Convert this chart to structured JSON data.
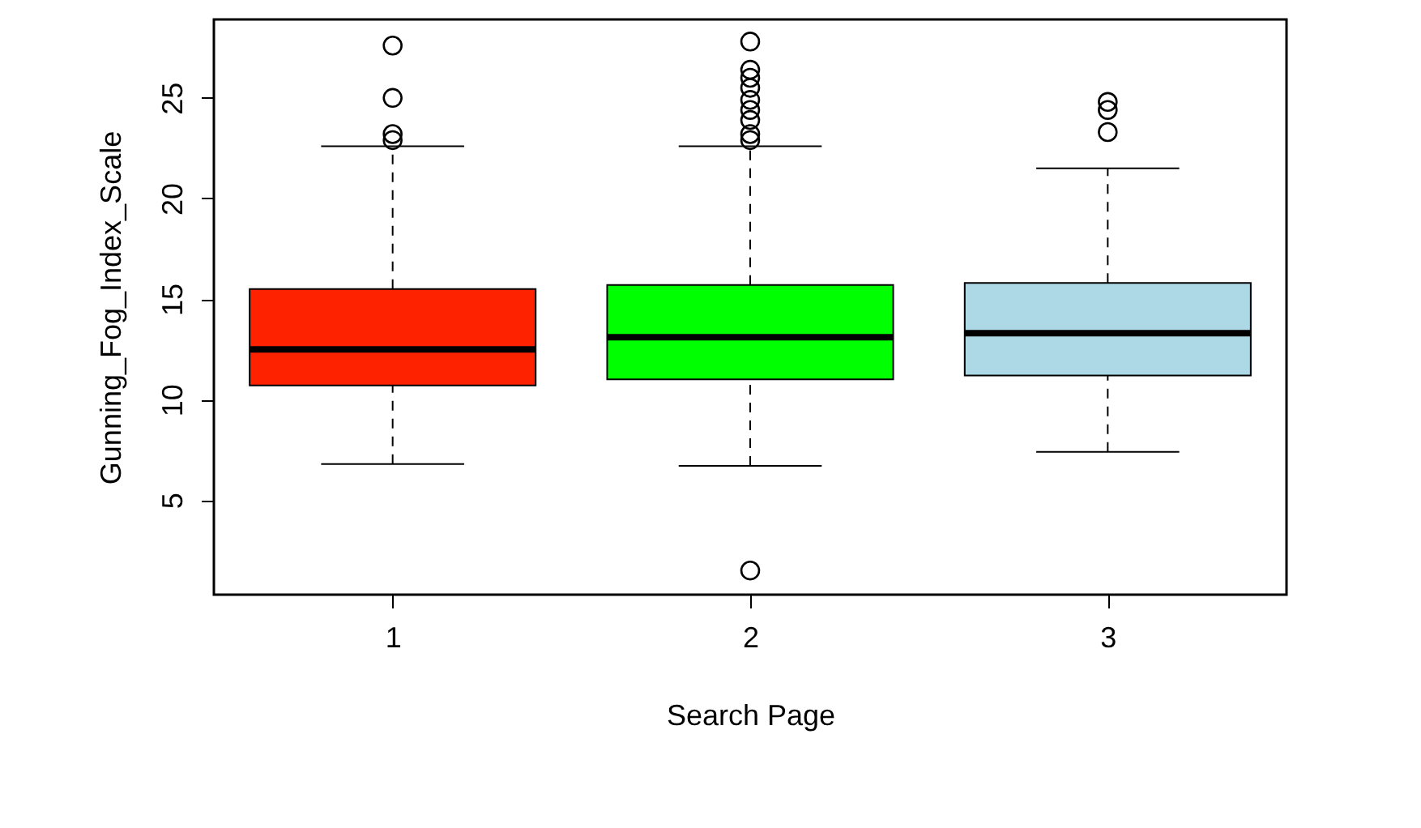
{
  "chart_data": {
    "type": "box",
    "xlabel": "Search Page",
    "ylabel": "Gunning_Fog_Index_Scale",
    "categories": [
      "1",
      "2",
      "3"
    ],
    "colors": [
      "#ff2200",
      "#00ff00",
      "#add8e6"
    ],
    "boxes": [
      {
        "low": 6.8,
        "q1": 10.7,
        "median": 12.5,
        "q3": 15.5,
        "high": 22.6,
        "outliers": [
          27.6,
          25.0,
          23.2,
          22.9
        ]
      },
      {
        "low": 6.7,
        "q1": 11.0,
        "median": 13.1,
        "q3": 15.7,
        "high": 22.6,
        "outliers": [
          27.8,
          26.4,
          26.0,
          25.5,
          24.9,
          24.4,
          23.9,
          23.2,
          22.9,
          1.5
        ]
      },
      {
        "low": 7.4,
        "q1": 11.2,
        "median": 13.3,
        "q3": 15.8,
        "high": 21.5,
        "outliers": [
          24.8,
          24.4,
          23.3
        ]
      }
    ],
    "ylim": [
      0.3,
      28.9
    ],
    "yticks": [
      5,
      10,
      15,
      20,
      25
    ],
    "grid": false
  }
}
